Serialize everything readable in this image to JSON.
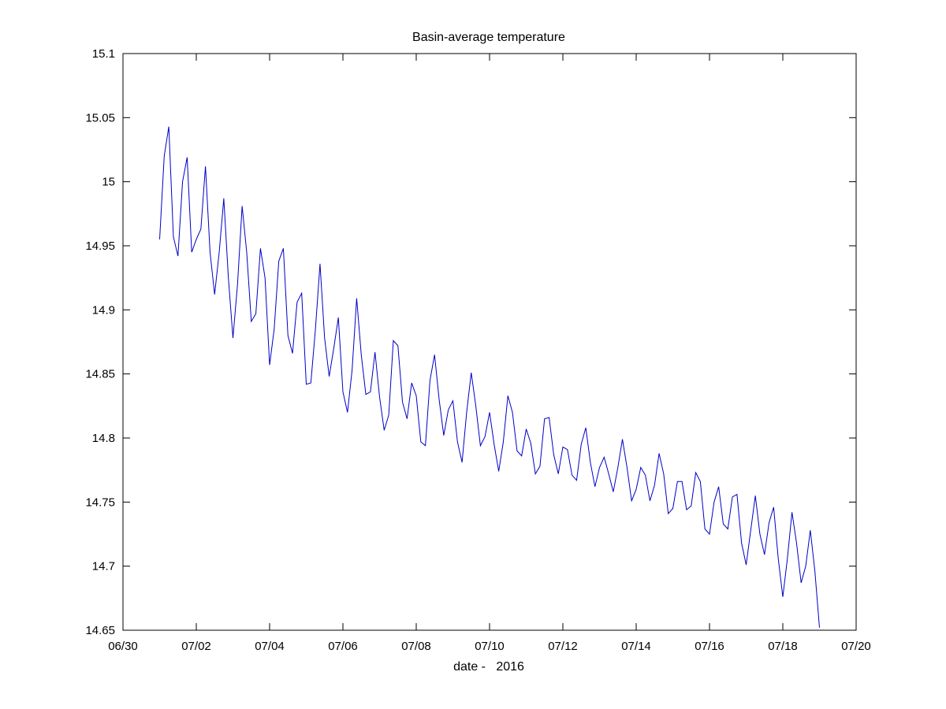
{
  "chart_data": {
    "type": "line",
    "title": "Basin-average temperature",
    "xlabel": "date -   2016",
    "ylabel": "",
    "xlim": [
      "2016-06-30",
      "2016-07-20"
    ],
    "ylim": [
      14.65,
      15.1
    ],
    "grid": false,
    "x_ticks": [
      "2016-06-30",
      "2016-07-02",
      "2016-07-04",
      "2016-07-06",
      "2016-07-08",
      "2016-07-10",
      "2016-07-12",
      "2016-07-14",
      "2016-07-16",
      "2016-07-18",
      "2016-07-20"
    ],
    "x_tick_labels": [
      "06/30",
      "07/02",
      "07/04",
      "07/06",
      "07/08",
      "07/10",
      "07/12",
      "07/14",
      "07/16",
      "07/18",
      "07/20"
    ],
    "y_ticks": [
      14.65,
      14.7,
      14.75,
      14.8,
      14.85,
      14.9,
      14.95,
      15.0,
      15.05,
      15.1
    ],
    "y_tick_labels": [
      "14.65",
      "14.7",
      "14.75",
      "14.8",
      "14.85",
      "14.9",
      "14.95",
      "15",
      "15.05",
      "15.1"
    ],
    "colors": {
      "series": "#0000c8",
      "axes": "#000000",
      "background": "#ffffff"
    },
    "series": [
      {
        "x": [
          "2016-07-01 00:00",
          "2016-07-01 03:00",
          "2016-07-01 06:00",
          "2016-07-01 09:00",
          "2016-07-01 12:00",
          "2016-07-01 15:00",
          "2016-07-01 18:00",
          "2016-07-01 21:00",
          "2016-07-02 00:00",
          "2016-07-02 03:00",
          "2016-07-02 06:00",
          "2016-07-02 09:00",
          "2016-07-02 12:00",
          "2016-07-02 15:00",
          "2016-07-02 18:00",
          "2016-07-02 21:00",
          "2016-07-03 00:00",
          "2016-07-03 03:00",
          "2016-07-03 06:00",
          "2016-07-03 09:00",
          "2016-07-03 12:00",
          "2016-07-03 15:00",
          "2016-07-03 18:00",
          "2016-07-03 21:00",
          "2016-07-04 00:00",
          "2016-07-04 03:00",
          "2016-07-04 06:00",
          "2016-07-04 09:00",
          "2016-07-04 12:00",
          "2016-07-04 15:00",
          "2016-07-04 18:00",
          "2016-07-04 21:00",
          "2016-07-05 00:00",
          "2016-07-05 03:00",
          "2016-07-05 06:00",
          "2016-07-05 09:00",
          "2016-07-05 12:00",
          "2016-07-05 15:00",
          "2016-07-05 18:00",
          "2016-07-05 21:00",
          "2016-07-06 00:00",
          "2016-07-06 03:00",
          "2016-07-06 06:00",
          "2016-07-06 09:00",
          "2016-07-06 12:00",
          "2016-07-06 15:00",
          "2016-07-06 18:00",
          "2016-07-06 21:00",
          "2016-07-07 00:00",
          "2016-07-07 03:00",
          "2016-07-07 06:00",
          "2016-07-07 09:00",
          "2016-07-07 12:00",
          "2016-07-07 15:00",
          "2016-07-07 18:00",
          "2016-07-07 21:00",
          "2016-07-08 00:00",
          "2016-07-08 03:00",
          "2016-07-08 06:00",
          "2016-07-08 09:00",
          "2016-07-08 12:00",
          "2016-07-08 15:00",
          "2016-07-08 18:00",
          "2016-07-08 21:00",
          "2016-07-09 00:00",
          "2016-07-09 03:00",
          "2016-07-09 06:00",
          "2016-07-09 09:00",
          "2016-07-09 12:00",
          "2016-07-09 15:00",
          "2016-07-09 18:00",
          "2016-07-09 21:00",
          "2016-07-10 00:00",
          "2016-07-10 03:00",
          "2016-07-10 06:00",
          "2016-07-10 09:00",
          "2016-07-10 12:00",
          "2016-07-10 15:00",
          "2016-07-10 18:00",
          "2016-07-10 21:00",
          "2016-07-11 00:00",
          "2016-07-11 03:00",
          "2016-07-11 06:00",
          "2016-07-11 09:00",
          "2016-07-11 12:00",
          "2016-07-11 15:00",
          "2016-07-11 18:00",
          "2016-07-11 21:00",
          "2016-07-12 00:00",
          "2016-07-12 03:00",
          "2016-07-12 06:00",
          "2016-07-12 09:00",
          "2016-07-12 12:00",
          "2016-07-12 15:00",
          "2016-07-12 18:00",
          "2016-07-12 21:00",
          "2016-07-13 00:00",
          "2016-07-13 03:00",
          "2016-07-13 06:00",
          "2016-07-13 09:00",
          "2016-07-13 12:00",
          "2016-07-13 15:00",
          "2016-07-13 18:00",
          "2016-07-13 21:00",
          "2016-07-14 00:00",
          "2016-07-14 03:00",
          "2016-07-14 06:00",
          "2016-07-14 09:00",
          "2016-07-14 12:00",
          "2016-07-14 15:00",
          "2016-07-14 18:00",
          "2016-07-14 21:00",
          "2016-07-15 00:00",
          "2016-07-15 03:00",
          "2016-07-15 06:00",
          "2016-07-15 09:00",
          "2016-07-15 12:00",
          "2016-07-15 15:00",
          "2016-07-15 18:00",
          "2016-07-15 21:00",
          "2016-07-16 00:00",
          "2016-07-16 03:00",
          "2016-07-16 06:00",
          "2016-07-16 09:00",
          "2016-07-16 12:00",
          "2016-07-16 15:00",
          "2016-07-16 18:00",
          "2016-07-16 21:00",
          "2016-07-17 00:00",
          "2016-07-17 03:00",
          "2016-07-17 06:00",
          "2016-07-17 09:00",
          "2016-07-17 12:00",
          "2016-07-17 15:00",
          "2016-07-17 18:00",
          "2016-07-17 21:00",
          "2016-07-18 00:00",
          "2016-07-18 03:00",
          "2016-07-18 06:00",
          "2016-07-18 09:00",
          "2016-07-18 12:00",
          "2016-07-18 15:00",
          "2016-07-18 18:00",
          "2016-07-18 21:00",
          "2016-07-19 00:00"
        ],
        "y": [
          14.955,
          15.02,
          15.043,
          14.957,
          14.942,
          15.0,
          15.019,
          14.945,
          14.955,
          14.963,
          15.012,
          14.945,
          14.912,
          14.945,
          14.987,
          14.925,
          14.878,
          14.92,
          14.981,
          14.945,
          14.891,
          14.897,
          14.948,
          14.925,
          14.857,
          14.885,
          14.938,
          14.948,
          14.88,
          14.866,
          14.906,
          14.913,
          14.842,
          14.843,
          14.885,
          14.936,
          14.878,
          14.848,
          14.87,
          14.894,
          14.836,
          14.82,
          14.853,
          14.909,
          14.865,
          14.834,
          14.836,
          14.867,
          14.832,
          14.806,
          14.818,
          14.876,
          14.872,
          14.828,
          14.815,
          14.843,
          14.833,
          14.797,
          14.794,
          14.845,
          14.865,
          14.83,
          14.802,
          14.822,
          14.829,
          14.797,
          14.781,
          14.82,
          14.851,
          14.825,
          14.794,
          14.801,
          14.82,
          14.795,
          14.774,
          14.797,
          14.833,
          14.82,
          14.79,
          14.786,
          14.807,
          14.796,
          14.772,
          14.778,
          14.815,
          14.816,
          14.787,
          14.772,
          14.793,
          14.791,
          14.771,
          14.767,
          14.795,
          14.808,
          14.781,
          14.762,
          14.777,
          14.785,
          14.772,
          14.758,
          14.777,
          14.799,
          14.777,
          14.751,
          14.76,
          14.777,
          14.771,
          14.751,
          14.763,
          14.788,
          14.772,
          14.741,
          14.745,
          14.766,
          14.766,
          14.744,
          14.747,
          14.773,
          14.766,
          14.729,
          14.725,
          14.75,
          14.762,
          14.733,
          14.729,
          14.754,
          14.756,
          14.718,
          14.701,
          14.728,
          14.755,
          14.725,
          14.709,
          14.734,
          14.746,
          14.706,
          14.676,
          14.706,
          14.742,
          14.718,
          14.687,
          14.7,
          14.728,
          14.696,
          14.652
        ]
      }
    ]
  }
}
